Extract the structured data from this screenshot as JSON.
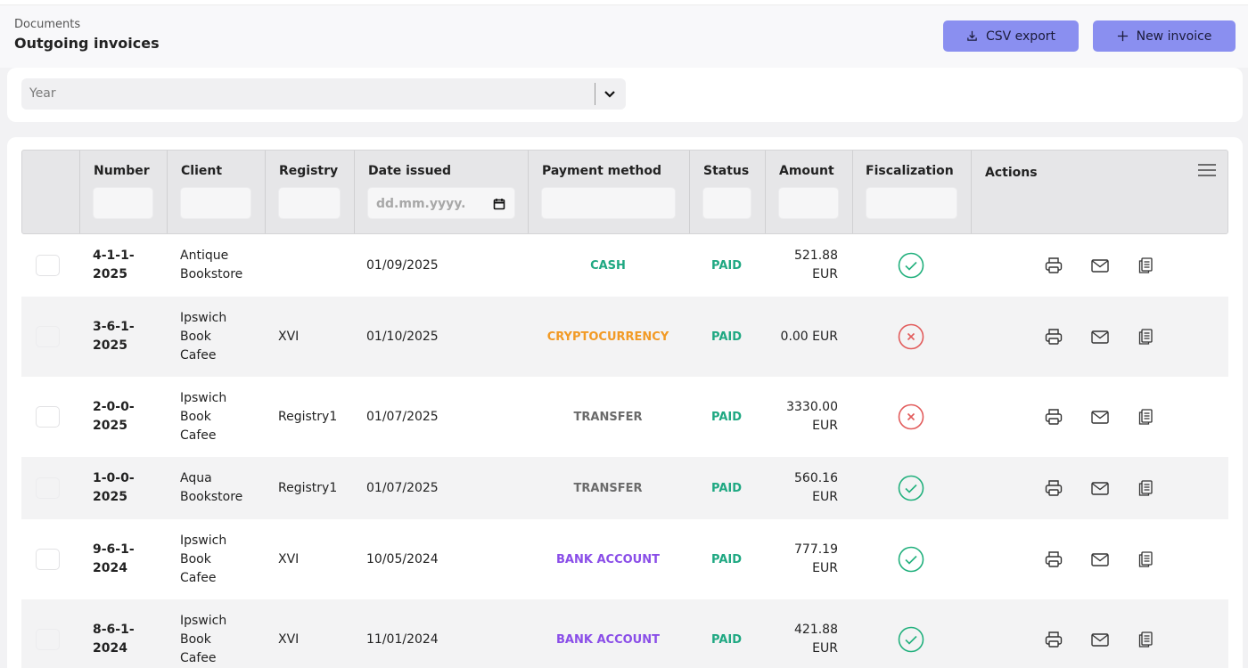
{
  "header": {
    "breadcrumb": "Documents",
    "title": "Outgoing invoices",
    "csv_export_label": "CSV export",
    "new_invoice_label": "New invoice"
  },
  "filters": {
    "year_placeholder": "Year"
  },
  "table": {
    "columns": {
      "number": "Number",
      "client": "Client",
      "registry": "Registry",
      "date_issued": "Date issued",
      "payment_method": "Payment method",
      "status": "Status",
      "amount": "Amount",
      "fiscalization": "Fiscalization",
      "actions": "Actions"
    },
    "date_placeholder": "dd.mm.yyyy.",
    "rows": [
      {
        "number": [
          "4-1-1-",
          "2025"
        ],
        "client": [
          "Antique",
          "Bookstore"
        ],
        "registry": "",
        "date": "01/09/2025",
        "payment": "CASH",
        "payment_color": "#1fa882",
        "status": "PAID",
        "amount": [
          "521.88",
          "EUR"
        ],
        "fiscalized": true
      },
      {
        "number": [
          "3-6-1-",
          "2025"
        ],
        "client": [
          "Ipswich",
          "Book",
          "Cafee"
        ],
        "registry": "XVI",
        "date": "01/10/2025",
        "payment": "CRYPTOCURRENCY",
        "payment_color": "#f29a25",
        "status": "PAID",
        "amount": [
          "0.00 EUR"
        ],
        "fiscalized": false
      },
      {
        "number": [
          "2-0-0-",
          "2025"
        ],
        "client": [
          "Ipswich",
          "Book",
          "Cafee"
        ],
        "registry": "Registry1",
        "date": "01/07/2025",
        "payment": "TRANSFER",
        "payment_color": "#6b6b6b",
        "status": "PAID",
        "amount": [
          "3330.00",
          "EUR"
        ],
        "fiscalized": false
      },
      {
        "number": [
          "1-0-0-",
          "2025"
        ],
        "client": [
          "Aqua",
          "Bookstore"
        ],
        "registry": "Registry1",
        "date": "01/07/2025",
        "payment": "TRANSFER",
        "payment_color": "#6b6b6b",
        "status": "PAID",
        "amount": [
          "560.16",
          "EUR"
        ],
        "fiscalized": true
      },
      {
        "number": [
          "9-6-1-",
          "2024"
        ],
        "client": [
          "Ipswich",
          "Book",
          "Cafee"
        ],
        "registry": "XVI",
        "date": "10/05/2024",
        "payment": "BANK ACCOUNT",
        "payment_color": "#8a4ee8",
        "status": "PAID",
        "amount": [
          "777.19",
          "EUR"
        ],
        "fiscalized": true
      },
      {
        "number": [
          "8-6-1-",
          "2024"
        ],
        "client": [
          "Ipswich",
          "Book",
          "Cafee"
        ],
        "registry": "XVI",
        "date": "11/01/2024",
        "payment": "BANK ACCOUNT",
        "payment_color": "#8a4ee8",
        "status": "PAID",
        "amount": [
          "421.88",
          "EUR"
        ],
        "fiscalized": true
      }
    ]
  },
  "colors": {
    "accent_button": "#8a8ff0",
    "paid": "#1fa882",
    "fiscal_ok": "#22b07d",
    "fiscal_fail": "#e25c5c"
  }
}
